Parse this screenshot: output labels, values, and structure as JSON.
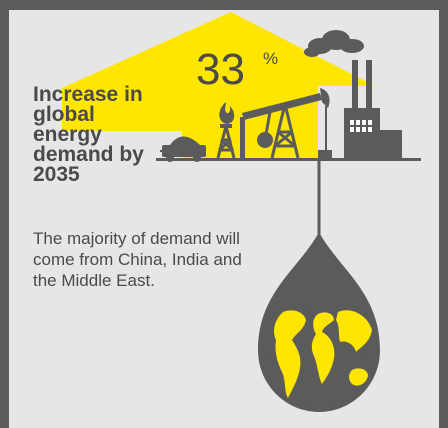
{
  "headline": "Increase in global energy demand by 2035",
  "stat": {
    "value": "33",
    "unit": "%"
  },
  "body": "The majority of demand will come from China, India and the Middle East.",
  "colors": {
    "accent": "#ffe600",
    "dark": "#5b5b5b",
    "text": "#4a4a4a",
    "panel": "#e6e6e6"
  },
  "icons": [
    "up-arrow-icon",
    "coal-cart-icon",
    "flame-icon",
    "drilling-rig-icon",
    "oil-pump-icon",
    "factory-icon",
    "smoke-cloud-icon",
    "oil-drop-globe-icon"
  ]
}
